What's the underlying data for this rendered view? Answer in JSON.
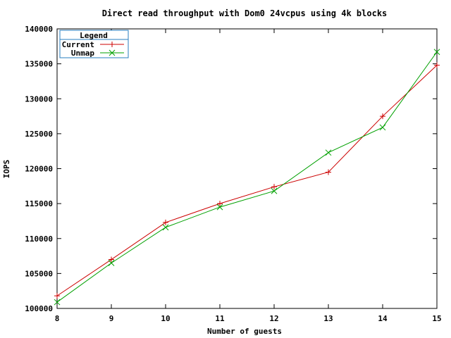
{
  "chart_data": {
    "type": "line",
    "title": "Direct read throughput with Dom0 24vcpus using 4k blocks",
    "xlabel": "Number of guests",
    "ylabel": "IOPS",
    "x": [
      8,
      9,
      10,
      11,
      12,
      13,
      14,
      15
    ],
    "xlim": [
      8,
      15
    ],
    "ylim": [
      100000,
      140000
    ],
    "xticks": [
      "8",
      "9",
      "10",
      "11",
      "12",
      "13",
      "14",
      "15"
    ],
    "yticks": [
      "100000",
      "105000",
      "110000",
      "115000",
      "120000",
      "125000",
      "130000",
      "135000",
      "140000"
    ],
    "legend": {
      "title": "Legend",
      "placement": "top-left"
    },
    "series": [
      {
        "name": "Current",
        "color": "#cc0000",
        "marker": "plus",
        "values": [
          101800,
          107000,
          112300,
          115000,
          117400,
          119500,
          127500,
          134800
        ]
      },
      {
        "name": "Unmap",
        "color": "#00a000",
        "marker": "cross",
        "values": [
          100900,
          106500,
          111600,
          114500,
          116800,
          122300,
          125900,
          136700
        ]
      }
    ]
  }
}
